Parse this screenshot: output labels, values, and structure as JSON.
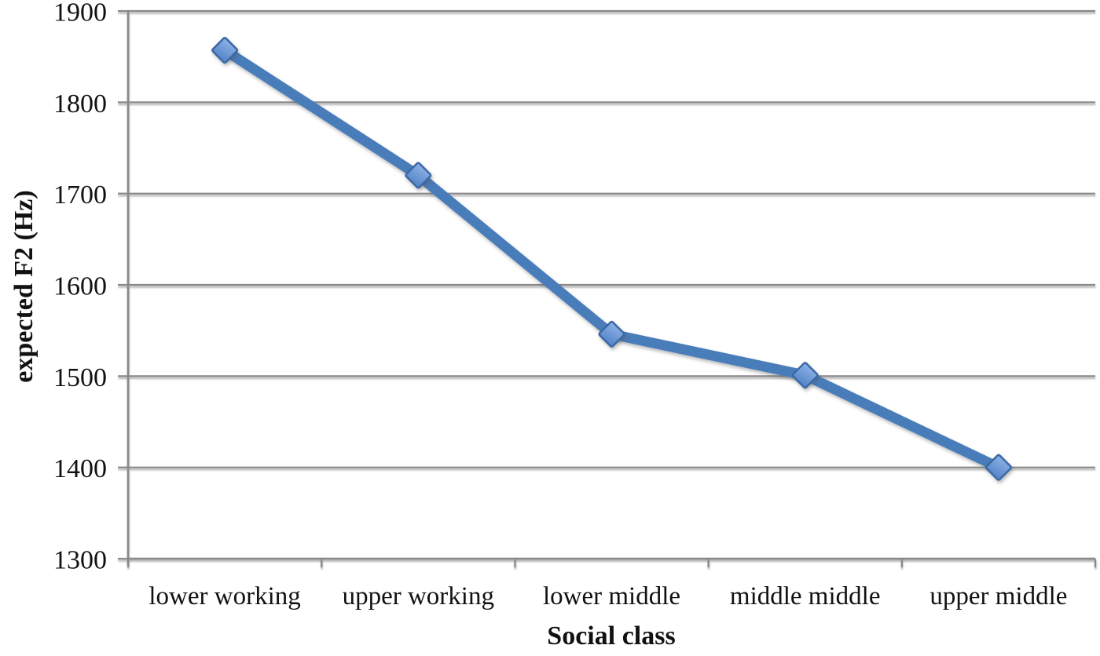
{
  "chart_data": {
    "type": "line",
    "title": "",
    "xlabel": "Social class",
    "ylabel": "expected F2 (Hz)",
    "categories": [
      "lower working",
      "upper working",
      "lower middle",
      "middle middle",
      "upper middle"
    ],
    "values": [
      1857,
      1720,
      1546,
      1501,
      1400
    ],
    "ylim": [
      1300,
      1900
    ],
    "yticks": [
      1900,
      1800,
      1700,
      1600,
      1500,
      1400,
      1300
    ],
    "grid": true,
    "legend": false,
    "marker": "diamond",
    "colors": {
      "line": "#4a7dba",
      "marker_fill_top": "#8fb2e6",
      "marker_fill_bottom": "#5b89cb",
      "marker_border": "#3a67a5",
      "axis": "#898989",
      "text": "#111111",
      "background": "#ffffff"
    }
  }
}
